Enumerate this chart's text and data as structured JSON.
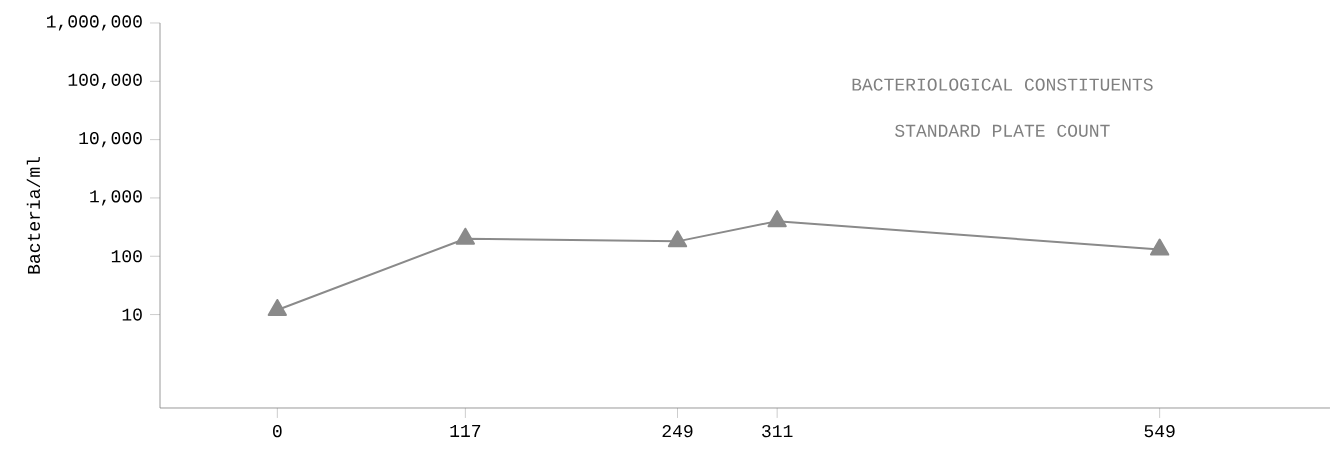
{
  "chart_data": {
    "type": "line",
    "title": "BACTERIOLOGICAL CONSTITUENTS",
    "subtitle": "STANDARD PLATE COUNT",
    "ylabel": "Bacteria/ml",
    "x": [
      0,
      117,
      249,
      311,
      549
    ],
    "series": [
      {
        "color": "#8a8a8a",
        "values": [
          12,
          200,
          180,
          400,
          130
        ]
      }
    ],
    "xlim": [
      -73,
      655
    ],
    "xticks": [
      0,
      117,
      249,
      311,
      549
    ],
    "ylim": [
      0.25,
      1000000
    ],
    "log": "y",
    "yticks": [
      {
        "value": 10,
        "label": "10"
      },
      {
        "value": 100,
        "label": "100"
      },
      {
        "value": 1000,
        "label": "1,000"
      },
      {
        "value": 10000,
        "label": "10,000"
      },
      {
        "value": 100000,
        "label": "100,000"
      },
      {
        "value": 1000000,
        "label": "1,000,000"
      }
    ],
    "marker": "triangle",
    "line_style": "solid"
  }
}
